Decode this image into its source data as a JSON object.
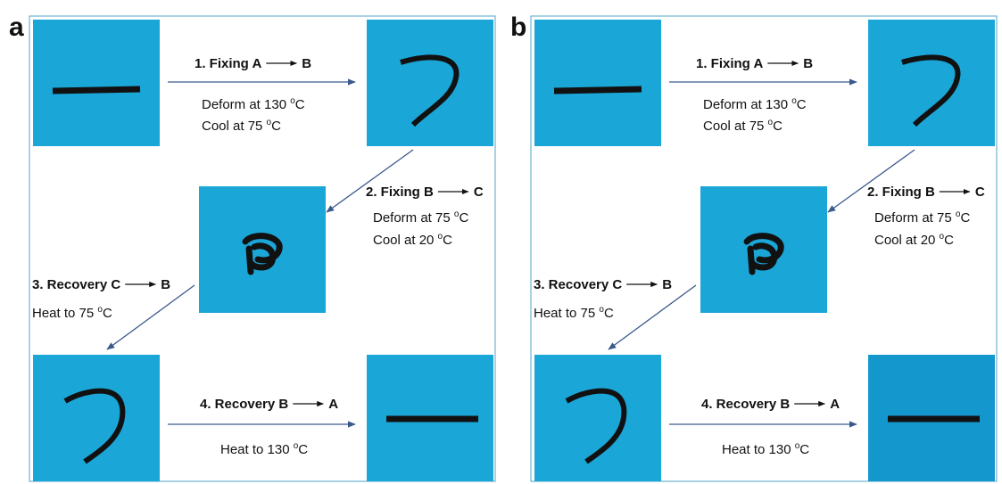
{
  "panels": [
    {
      "label": "a",
      "steps": [
        {
          "title": "1. Fixing A",
          "target": "B",
          "lines": [
            {
              "pre": "Deform at 130 ",
              "sup": "o",
              "post": "C"
            },
            {
              "pre": "Cool at 75 ",
              "sup": "o",
              "post": "C"
            }
          ]
        },
        {
          "title": "2. Fixing B",
          "target": "C",
          "lines": [
            {
              "pre": "Deform at 75 ",
              "sup": "o",
              "post": "C"
            },
            {
              "pre": "Cool at 20 ",
              "sup": "o",
              "post": "C"
            }
          ]
        },
        {
          "title": "3. Recovery C",
          "target": "B",
          "lines": [
            {
              "pre": "Heat to 75 ",
              "sup": "o",
              "post": "C"
            }
          ]
        },
        {
          "title": "4. Recovery B",
          "target": "A",
          "lines": [
            {
              "pre": "Heat to 130 ",
              "sup": "o",
              "post": "C"
            }
          ]
        }
      ]
    },
    {
      "label": "b",
      "steps": [
        {
          "title": "1. Fixing A",
          "target": "B",
          "lines": [
            {
              "pre": "Deform at 130 ",
              "sup": "o",
              "post": "C"
            },
            {
              "pre": "Cool at 75 ",
              "sup": "o",
              "post": "C"
            }
          ]
        },
        {
          "title": "2. Fixing B",
          "target": "C",
          "lines": [
            {
              "pre": "Deform at 75 ",
              "sup": "o",
              "post": "C"
            },
            {
              "pre": "Cool at 20 ",
              "sup": "o",
              "post": "C"
            }
          ]
        },
        {
          "title": "3. Recovery C",
          "target": "B",
          "lines": [
            {
              "pre": "Heat to 75 ",
              "sup": "o",
              "post": "C"
            }
          ]
        },
        {
          "title": "4. Recovery B",
          "target": "A",
          "lines": [
            {
              "pre": "Heat to 130 ",
              "sup": "o",
              "post": "C"
            }
          ]
        }
      ]
    }
  ]
}
